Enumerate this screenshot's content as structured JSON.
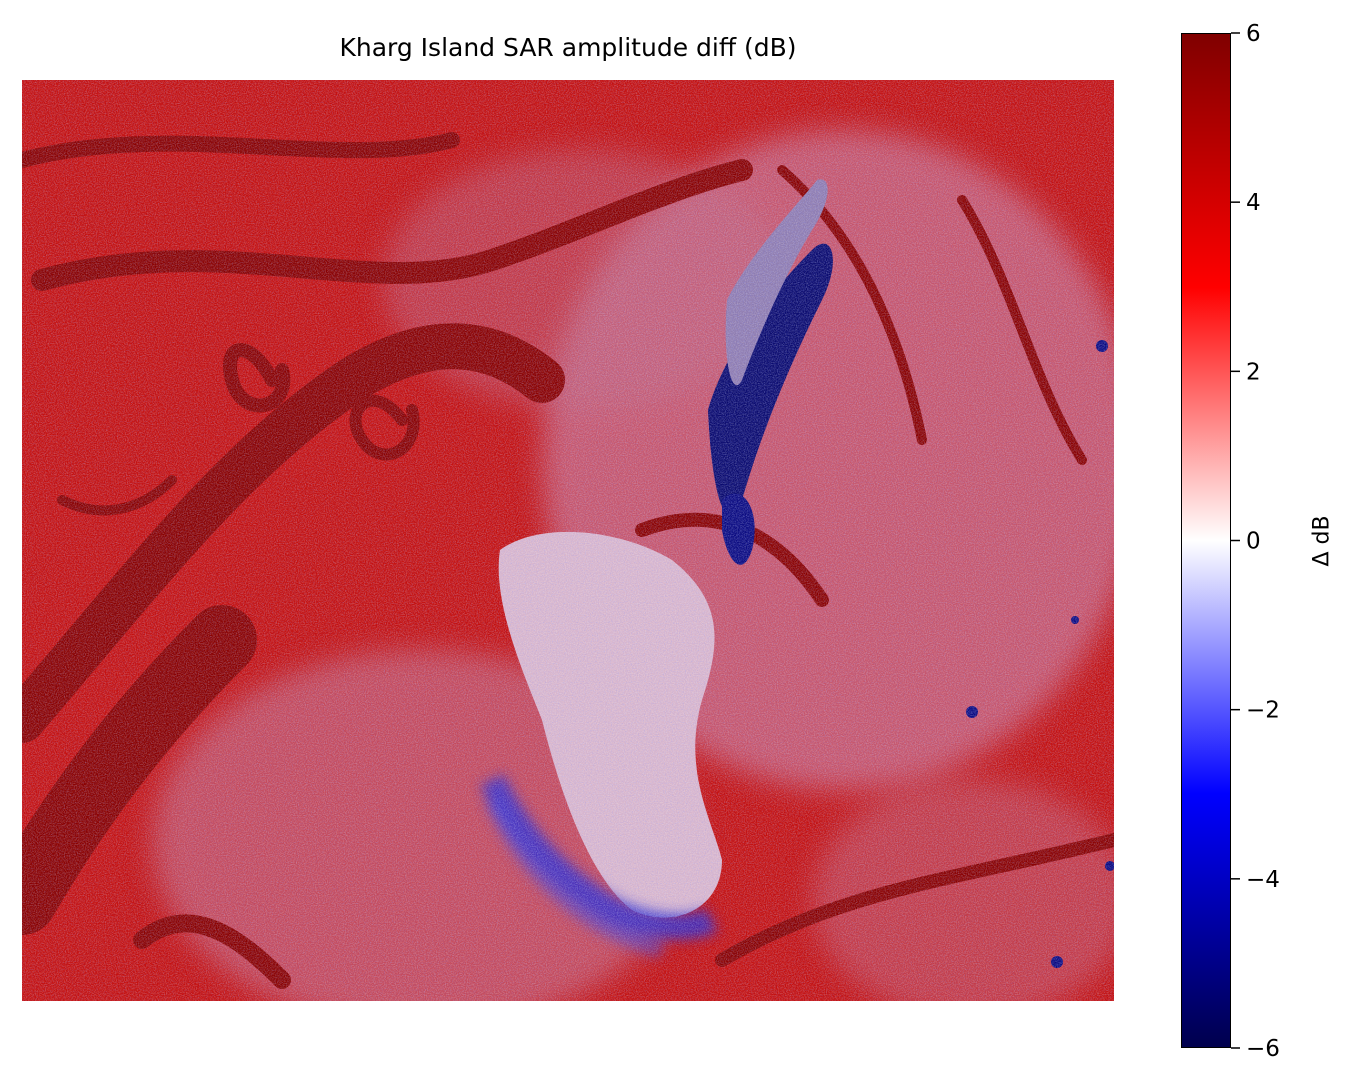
{
  "chart_data": {
    "type": "heatmap",
    "title": "Kharg Island SAR amplitude diff (dB)",
    "xlabel": "",
    "ylabel": "",
    "axes_visible": false,
    "colormap": "seismic",
    "colormap_stops": [
      {
        "value": -6,
        "color": "#00004d"
      },
      {
        "value": -3,
        "color": "#0000ff"
      },
      {
        "value": 0,
        "color": "#ffffff"
      },
      {
        "value": 3,
        "color": "#ff0000"
      },
      {
        "value": 6,
        "color": "#800000"
      }
    ],
    "colorbar": {
      "label": "Δ dB",
      "vmin": -6,
      "vmax": 6,
      "ticks": [
        6,
        4,
        2,
        0,
        -2,
        -4,
        -6
      ],
      "tick_labels": [
        "6",
        "4",
        "2",
        "0",
        "−2",
        "−4",
        "−6"
      ]
    },
    "value_range": [
      -6,
      6
    ],
    "features": [
      {
        "name": "low-change island core",
        "approx_value": -0.5
      },
      {
        "name": "dark negative slick northeast of island",
        "approx_value": -6
      },
      {
        "name": "negative band around southern island edge",
        "approx_value": -3.5
      },
      {
        "name": "strong positive streaks in water",
        "approx_value": 6
      }
    ]
  }
}
